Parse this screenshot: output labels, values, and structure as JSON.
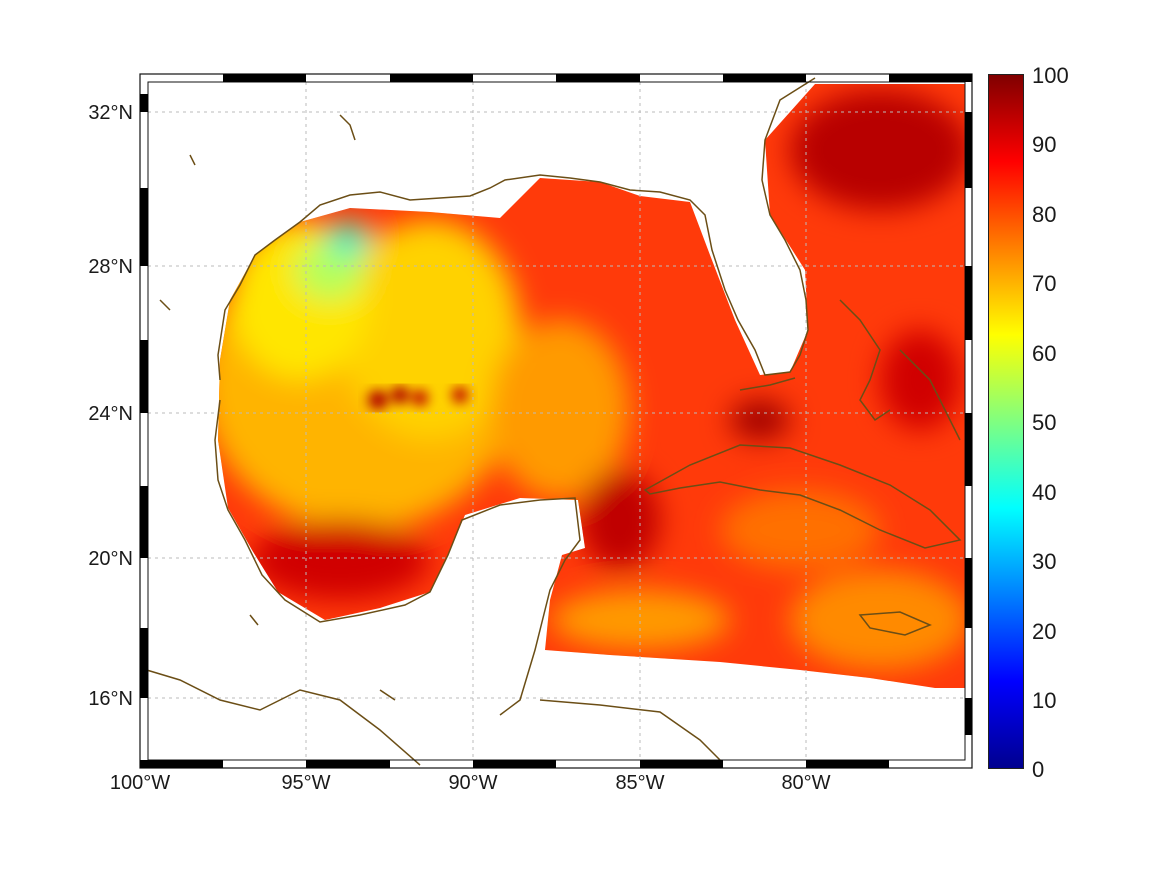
{
  "map": {
    "longitude_labels": [
      "100°W",
      "95°W",
      "90°W",
      "85°W",
      "80°W"
    ],
    "latitude_labels": [
      "32°N",
      "28°N",
      "24°N",
      "20°N",
      "16°N"
    ],
    "coastline_color": "#6b4e16",
    "grid": true
  },
  "colorbar": {
    "labels": [
      "100",
      "90",
      "80",
      "70",
      "60",
      "50",
      "40",
      "30",
      "20",
      "10",
      "0"
    ],
    "colormap": "jet",
    "min": 0,
    "max": 100
  }
}
